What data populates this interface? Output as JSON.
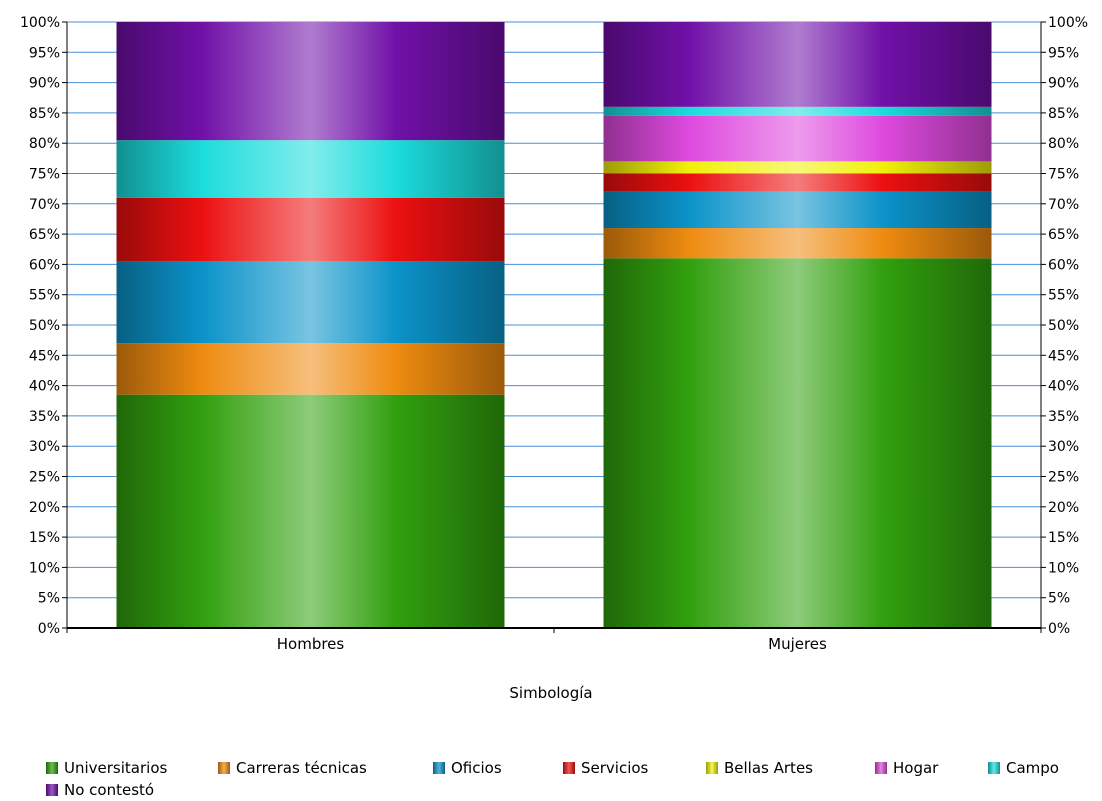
{
  "chart_data": {
    "type": "bar",
    "stacked": true,
    "percent": true,
    "categories": [
      "Hombres",
      "Mujeres"
    ],
    "series": [
      {
        "name": "Universitarios",
        "color": "#31a00e",
        "values": [
          38.5,
          61.0
        ]
      },
      {
        "name": "Carreras técnicas",
        "color": "#ee8b10",
        "values": [
          8.5,
          5.0
        ]
      },
      {
        "name": "Oficios",
        "color": "#0b93c9",
        "values": [
          13.5,
          6.0
        ]
      },
      {
        "name": "Servicios",
        "color": "#ec1010",
        "values": [
          10.5,
          3.0
        ]
      },
      {
        "name": "Bellas Artes",
        "color": "#f0f00a",
        "values": [
          0.0,
          2.0
        ]
      },
      {
        "name": "Hogar",
        "color": "#de4ade",
        "values": [
          0.0,
          7.5
        ]
      },
      {
        "name": "Campo",
        "color": "#1cdcdc",
        "values": [
          9.5,
          1.5
        ]
      },
      {
        "name": "No contestó",
        "color": "#7010a8",
        "values": [
          19.5,
          14.0
        ]
      }
    ],
    "ylim": [
      0,
      100
    ],
    "yticks": [
      0,
      5,
      10,
      15,
      20,
      25,
      30,
      35,
      40,
      45,
      50,
      55,
      60,
      65,
      70,
      75,
      80,
      85,
      90,
      95,
      100
    ],
    "ytick_labels": [
      "0%",
      "5%",
      "10%",
      "15%",
      "20%",
      "25%",
      "30%",
      "35%",
      "40%",
      "45%",
      "50%",
      "55%",
      "60%",
      "65%",
      "70%",
      "75%",
      "80%",
      "85%",
      "90%",
      "95%",
      "100%"
    ],
    "grid": true,
    "grid_color": "#4a90d9",
    "legend_title": "Simbología",
    "legend_position": "bottom"
  }
}
